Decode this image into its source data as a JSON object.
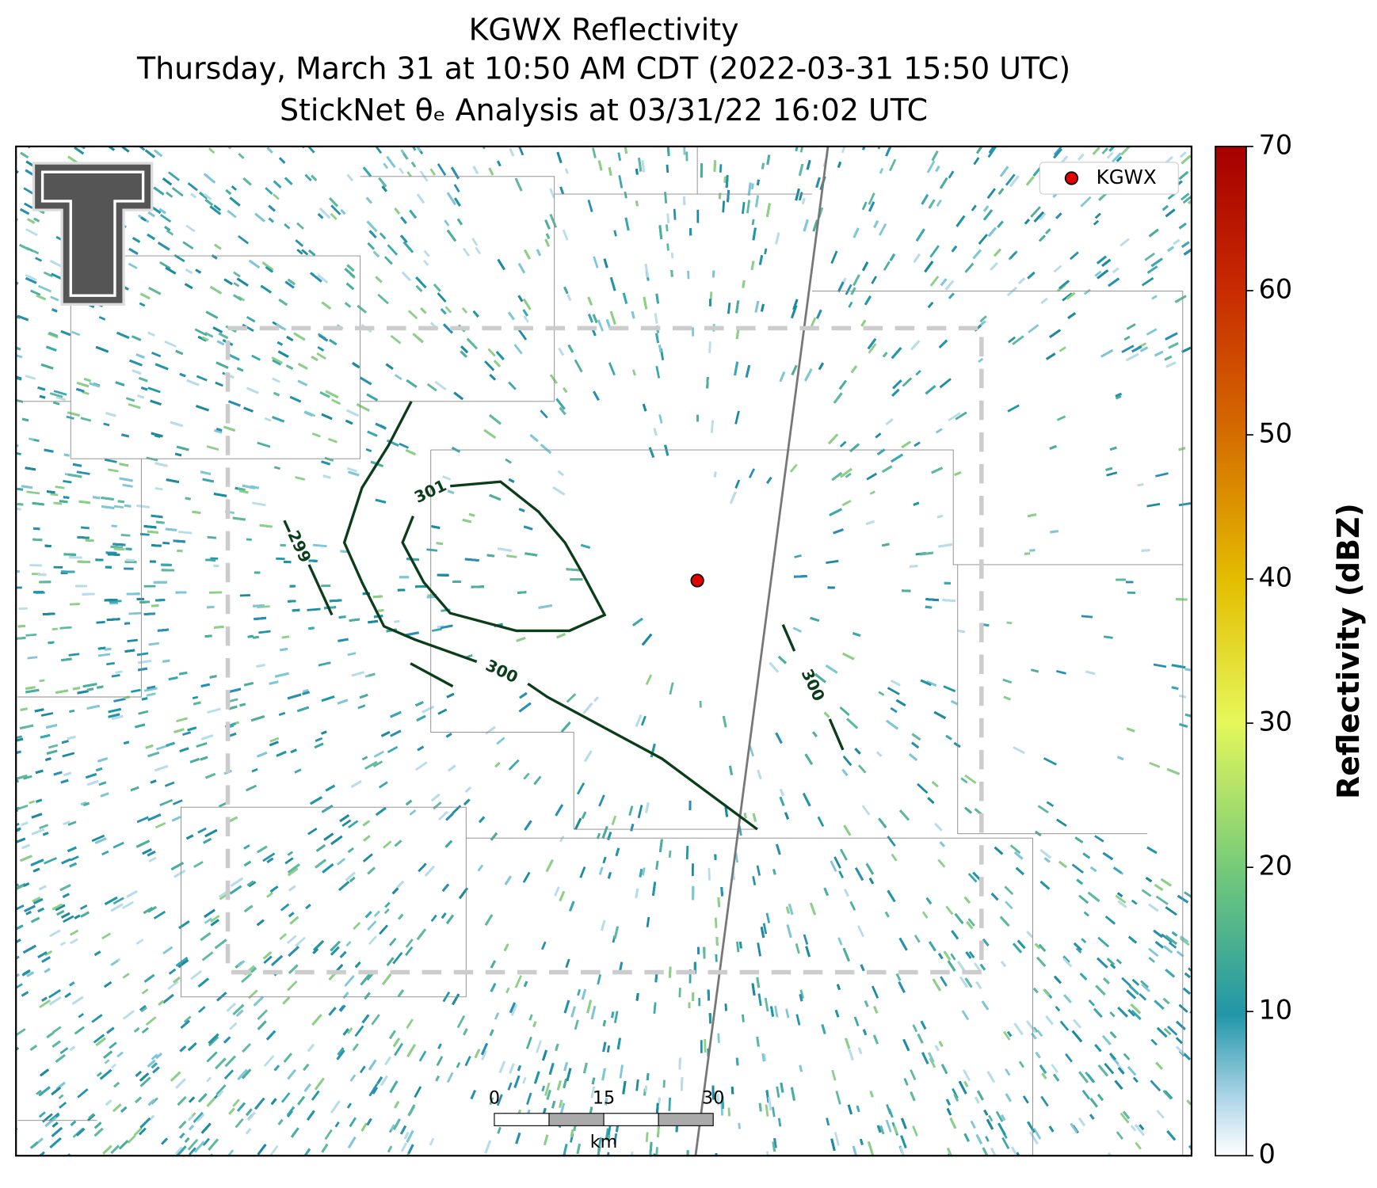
{
  "title": [
    "KGWX Reflectivity",
    "Thursday, March 31 at 10:50 AM CDT (2022-03-31 15:50 UTC)",
    "StickNet θₑ Analysis at 03/31/22 16:02 UTC"
  ],
  "legend": {
    "label": "KGWX"
  },
  "colorbar": {
    "label": "Reflectivity (dBZ)",
    "lim": [
      0,
      70
    ],
    "ticks": [
      0,
      10,
      20,
      30,
      40,
      50,
      60,
      70
    ]
  },
  "contours": [
    {
      "label": 301
    },
    {
      "label": 300
    },
    {
      "label": 300
    },
    {
      "label": 299
    }
  ],
  "scale_bar": {
    "ticks": [
      0,
      15,
      30
    ],
    "unit": "km"
  }
}
